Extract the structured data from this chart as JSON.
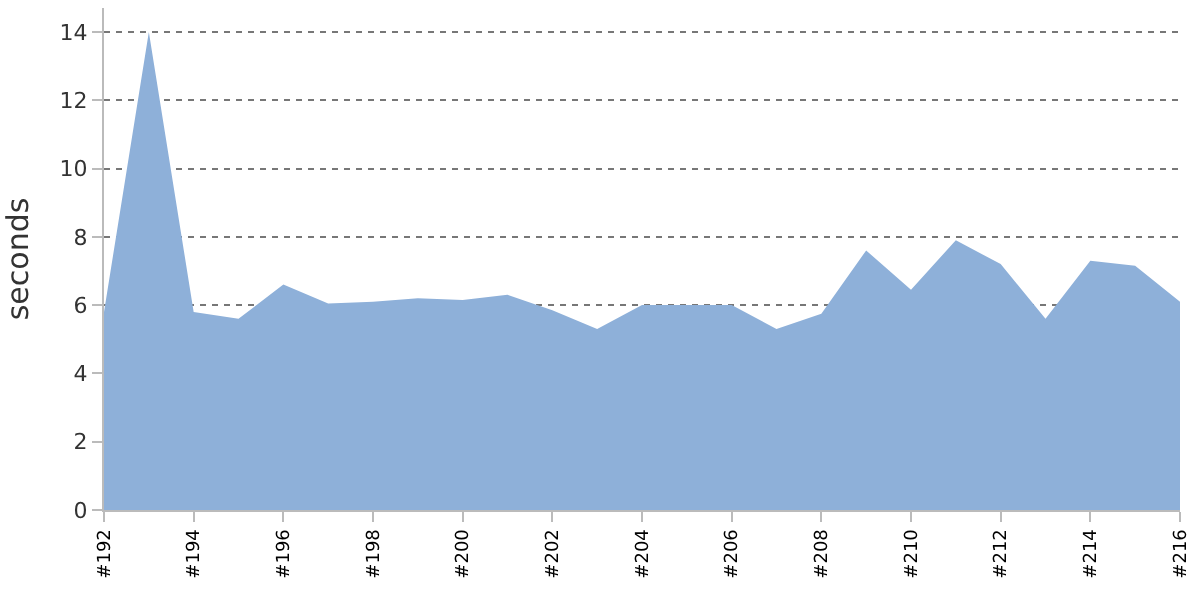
{
  "chart_data": {
    "type": "area",
    "ylabel": "seconds",
    "categories": [
      "#192",
      null,
      "#194",
      null,
      "#196",
      null,
      "#198",
      null,
      "#200",
      null,
      "#202",
      null,
      "#204",
      null,
      "#206",
      null,
      "#208",
      null,
      "#210",
      null,
      "#212",
      null,
      "#214",
      null,
      "#216"
    ],
    "series": [
      {
        "color": "#8eb0d9",
        "values": [
          5.8,
          14.0,
          5.8,
          5.6,
          6.6,
          6.05,
          6.1,
          6.2,
          6.15,
          6.3,
          5.85,
          5.3,
          6.0,
          6.0,
          6.0,
          5.3,
          5.75,
          7.6,
          6.45,
          7.9,
          7.2,
          5.6,
          7.3,
          7.15,
          6.1
        ]
      }
    ],
    "ylim": [
      0,
      14.7
    ],
    "yticks": [
      0,
      2,
      4,
      6,
      8,
      10,
      12,
      14
    ],
    "grid": "y",
    "legend": false
  }
}
